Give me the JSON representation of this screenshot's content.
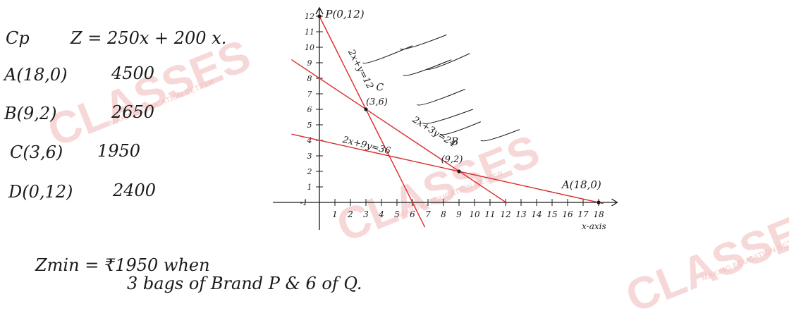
{
  "watermark": {
    "brand": "CLASSES",
    "tagline": "MAKING EDUCATION BETTER",
    "color": "#e05a5a"
  },
  "left_notes": {
    "heading_cp": "Cp",
    "objective": "Z = 250x + 200 x.",
    "rows": [
      {
        "point": "A(18,0)",
        "value": "4500"
      },
      {
        "point": "B(9,2)",
        "value": "2650"
      },
      {
        "point": "C(3,6)",
        "value": "1950"
      },
      {
        "point": "D(0,12)",
        "value": "2400"
      }
    ]
  },
  "conclusion": {
    "line1": "Zmin = ₹1950 when",
    "line2": "3 bags of Brand P & 6 of Q."
  },
  "graph": {
    "y_ticks": [
      "1",
      "2",
      "3",
      "4",
      "5",
      "6",
      "7",
      "8",
      "9",
      "10",
      "11",
      "12"
    ],
    "x_ticks": [
      "1",
      "2",
      "3",
      "4",
      "5",
      "6",
      "7",
      "8",
      "9",
      "10",
      "11",
      "12",
      "13",
      "14",
      "15",
      "16",
      "17",
      "18"
    ],
    "origin_label": "-1",
    "x_axis_label": "x-axis",
    "points": [
      {
        "label": "P(0,12)",
        "x": 0,
        "y": 12
      },
      {
        "label": "C",
        "sub": "(3,6)",
        "x": 3,
        "y": 6
      },
      {
        "label": "B",
        "sub": "(9,2)",
        "x": 9,
        "y": 2
      },
      {
        "label": "A(18,0)",
        "x": 18,
        "y": 0
      }
    ],
    "lines": [
      {
        "label": "2x+y=12",
        "from": [
          0,
          12
        ],
        "to": [
          6.8,
          -1.6
        ]
      },
      {
        "label": "2x+3y=24",
        "from": [
          -1.8,
          9.2
        ],
        "to": [
          12.1,
          -0.05
        ]
      },
      {
        "label": "2x+9y=36",
        "from": [
          -1.8,
          4.4
        ],
        "to": [
          18.3,
          -0.07
        ]
      }
    ],
    "line_color": "#d92b2b"
  }
}
